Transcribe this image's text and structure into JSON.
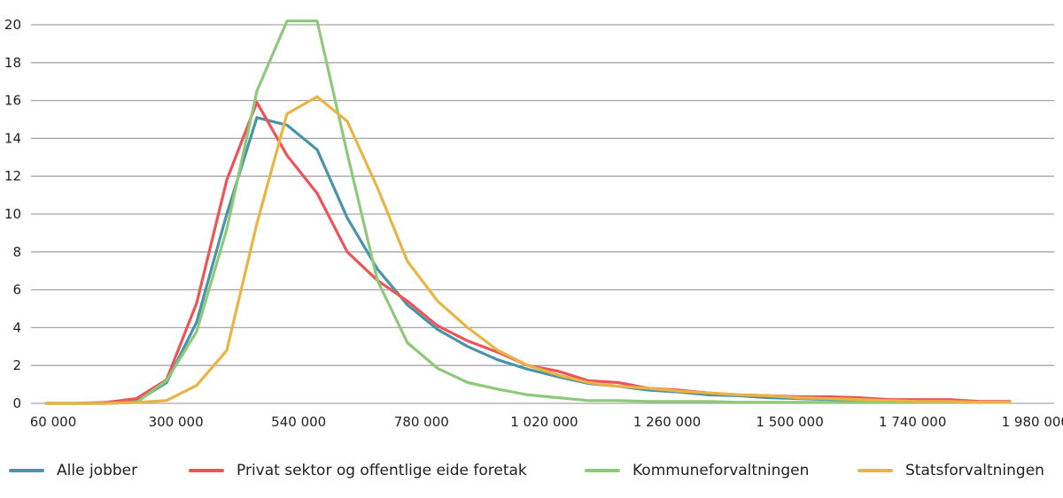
{
  "chart_data": {
    "type": "line",
    "title": "",
    "xlabel": "",
    "ylabel": "",
    "x": [
      60000,
      120000,
      180000,
      240000,
      300000,
      360000,
      420000,
      480000,
      540000,
      600000,
      660000,
      720000,
      780000,
      840000,
      900000,
      960000,
      1020000,
      1080000,
      1140000,
      1200000,
      1260000,
      1320000,
      1380000,
      1440000,
      1500000,
      1560000,
      1620000,
      1680000,
      1740000,
      1800000,
      1860000,
      1920000,
      1980000
    ],
    "x_tick_labels": [
      "60 000",
      "300 000",
      "540 000",
      "780 000",
      "1 020 000",
      "1 260 000",
      "1 500 000",
      "1 740 000",
      "1 980 000"
    ],
    "y_tick_labels": [
      "0",
      "2",
      "4",
      "6",
      "8",
      "10",
      "12",
      "14",
      "16",
      "18",
      "20"
    ],
    "ylim": [
      0,
      20
    ],
    "grid": "horizontal",
    "legend_position": "bottom",
    "series": [
      {
        "name": "Alle jobber",
        "color": "#4a94a8",
        "values": [
          0,
          0,
          0,
          0.1,
          1.1,
          4.3,
          10.0,
          15.1,
          14.7,
          13.4,
          9.8,
          7.1,
          5.2,
          3.9,
          3.0,
          2.3,
          1.8,
          1.4,
          1.05,
          0.9,
          0.7,
          0.6,
          0.45,
          0.4,
          0.3,
          0.25,
          0.2,
          0.15,
          0.1,
          0.1,
          0.1,
          0.05,
          0.05
        ]
      },
      {
        "name": "Privat sektor og offentlige eide foretak",
        "color": "#ec5558",
        "values": [
          0,
          0,
          0.05,
          0.25,
          1.25,
          5.3,
          11.8,
          15.9,
          13.1,
          11.1,
          8.0,
          6.5,
          5.4,
          4.1,
          3.3,
          2.7,
          2.0,
          1.7,
          1.2,
          1.1,
          0.8,
          0.7,
          0.55,
          0.45,
          0.4,
          0.35,
          0.35,
          0.3,
          0.2,
          0.2,
          0.2,
          0.1,
          0.1
        ]
      },
      {
        "name": "Kommuneforvaltningen",
        "color": "#8cc97a",
        "values": [
          0,
          0,
          0,
          0.05,
          1.2,
          3.8,
          9.2,
          16.5,
          20.2,
          20.2,
          13.2,
          6.5,
          3.2,
          1.85,
          1.1,
          0.75,
          0.45,
          0.3,
          0.15,
          0.15,
          0.1,
          0.1,
          0.1,
          0.05,
          0.05,
          0.05,
          0.05,
          0.05,
          0.05,
          0.05,
          0.05,
          0.05,
          0.05
        ]
      },
      {
        "name": "Statsforvaltningen",
        "color": "#e8b545",
        "values": [
          0,
          0,
          0,
          0.05,
          0.15,
          0.95,
          2.8,
          9.5,
          15.3,
          16.2,
          14.9,
          11.4,
          7.5,
          5.4,
          4.0,
          2.8,
          2.0,
          1.5,
          1.1,
          0.9,
          0.8,
          0.65,
          0.55,
          0.45,
          0.4,
          0.3,
          0.25,
          0.2,
          0.15,
          0.1,
          0.1,
          0.05,
          0.05
        ]
      }
    ]
  }
}
